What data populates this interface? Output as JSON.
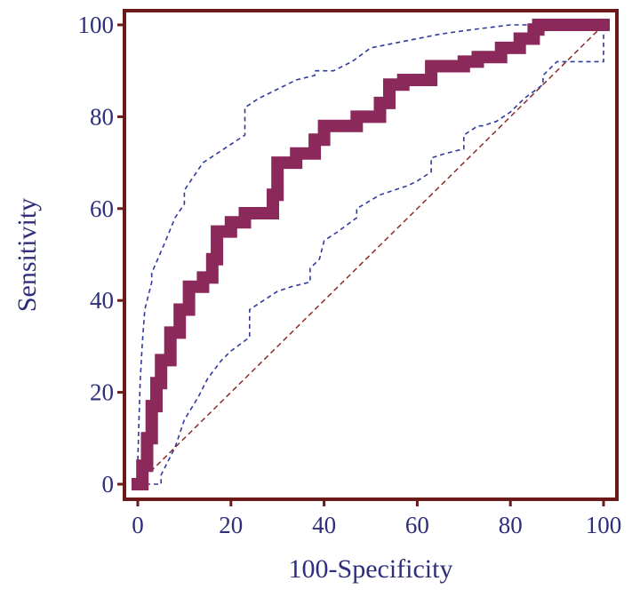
{
  "chart_data": {
    "type": "line",
    "title": "",
    "xlabel": "100-Specificity",
    "ylabel": "Sensitivity",
    "xlim": [
      0,
      100
    ],
    "ylim": [
      0,
      100
    ],
    "xticks": [
      "0",
      "20",
      "40",
      "60",
      "80",
      "100"
    ],
    "yticks": [
      "0",
      "20",
      "40",
      "60",
      "80",
      "100"
    ],
    "grid": false,
    "legend": "none",
    "colors": {
      "roc_curve": "#8b2a5a",
      "confidence_bounds": "#2f3a9c",
      "reference_line": "#8b2a2a",
      "frame": "#6b1a1a",
      "text": "#2e2e7a"
    },
    "series": [
      {
        "style": "thick-step",
        "x": [
          0,
          1,
          1,
          2,
          2,
          3,
          3,
          4,
          4,
          5,
          5,
          7,
          7,
          9,
          9,
          11,
          11,
          14,
          14,
          16,
          16,
          17,
          17,
          20,
          20,
          23,
          23,
          29,
          29,
          30,
          30,
          34,
          34,
          38,
          38,
          40,
          40,
          47,
          47,
          52,
          52,
          54,
          54,
          57,
          57,
          63,
          63,
          70,
          70,
          73,
          73,
          78,
          78,
          82,
          82,
          85,
          85,
          86,
          86,
          100
        ],
        "y": [
          0,
          0,
          4,
          4,
          10,
          10,
          17,
          17,
          22,
          22,
          27,
          27,
          33,
          33,
          38,
          38,
          43,
          43,
          45,
          45,
          49,
          49,
          55,
          55,
          57,
          57,
          59,
          59,
          63,
          63,
          70,
          70,
          72,
          72,
          75,
          75,
          78,
          78,
          80,
          80,
          83,
          83,
          87,
          87,
          88,
          88,
          91,
          91,
          92,
          92,
          93,
          93,
          95,
          95,
          97,
          97,
          99,
          99,
          100,
          100
        ]
      },
      {
        "style": "dashed",
        "x": [
          0,
          0,
          0.5,
          1,
          1.5,
          3,
          3,
          6,
          8,
          10,
          10,
          12,
          14,
          17,
          20,
          23,
          23,
          26,
          30,
          34,
          38,
          38,
          42,
          46,
          50,
          55,
          60,
          65,
          72,
          80,
          86,
          100
        ],
        "y": [
          0,
          5,
          22,
          31,
          38,
          44,
          46,
          53,
          58,
          61,
          64,
          67,
          70,
          72,
          74,
          76,
          82,
          84,
          86,
          88,
          89,
          90,
          90,
          92,
          95,
          96,
          97,
          98,
          99,
          100,
          100,
          100
        ]
      },
      {
        "style": "dashed",
        "x": [
          0,
          3,
          5,
          5,
          8,
          10,
          13,
          15,
          18,
          20,
          24,
          24,
          27,
          30,
          33,
          37,
          37,
          39,
          40,
          43,
          47,
          47,
          52,
          55,
          58,
          60,
          63,
          63,
          66,
          70,
          70,
          73,
          74,
          77,
          80,
          83,
          87,
          87,
          90,
          95,
          100,
          100
        ],
        "y": [
          0,
          0,
          0,
          2,
          8,
          14,
          19,
          23,
          27,
          29,
          32,
          38,
          40,
          42,
          43,
          44,
          47,
          49,
          53,
          55,
          58,
          60,
          63,
          64,
          65,
          66,
          68,
          71,
          72,
          73,
          76,
          78,
          78,
          79,
          81,
          84,
          87,
          89,
          92,
          92,
          92,
          100
        ]
      },
      {
        "style": "dashed-reference",
        "x": [
          0,
          100
        ],
        "y": [
          0,
          100
        ]
      }
    ]
  }
}
